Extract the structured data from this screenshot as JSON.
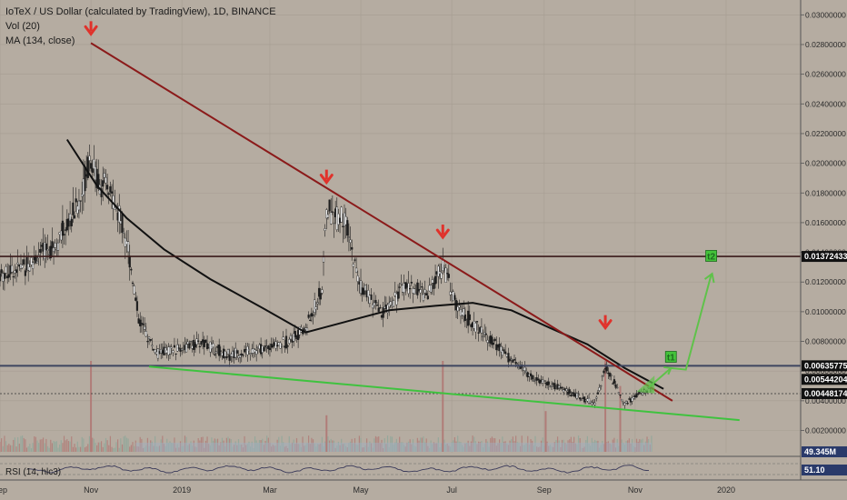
{
  "header": {
    "title": "IoTeX / US Dollar (calculated by TradingView), 1D, BINANCE",
    "vol_label": "Vol (20)",
    "ma_label": "MA (134, close)"
  },
  "rsi": {
    "label": "RSI (14, hlc3)",
    "value": "51.10"
  },
  "vol_value": "49.345M",
  "colors": {
    "background": "#b5aca1",
    "resistance_line": "#8b1a1a",
    "support_line": "#3fc23f",
    "ma_line": "#111111",
    "arrow": "#e0322b",
    "projection": "#5fc24a",
    "price_tag": "#111111",
    "target_bg": "#44c23a"
  },
  "chart_data": {
    "type": "candlestick",
    "y_axis_scale": "linear",
    "ylim": [
      0.0005,
      0.031
    ],
    "y_ticks": [
      0.002,
      0.004,
      0.006,
      0.008,
      0.01,
      0.012,
      0.014,
      0.016,
      0.018,
      0.02,
      0.022,
      0.024,
      0.026,
      0.028,
      0.03
    ],
    "y_tick_labels": [
      "0.00200000",
      "0.00400000",
      "0.00600000",
      "0.00800000",
      "0.01000000",
      "0.01200000",
      "0.01400000",
      "0.01600000",
      "0.01800000",
      "0.02000000",
      "0.02200000",
      "0.02400000",
      "0.02600000",
      "0.02800000",
      "0.03000000"
    ],
    "x_axis_labels": [
      {
        "label": "Sep",
        "date": "2018-09-01"
      },
      {
        "label": "Nov",
        "date": "2018-11-01"
      },
      {
        "label": "2019",
        "date": "2019-01-01"
      },
      {
        "label": "Mar",
        "date": "2019-03-01"
      },
      {
        "label": "May",
        "date": "2019-05-01"
      },
      {
        "label": "Jul",
        "date": "2019-07-01"
      },
      {
        "label": "Sep",
        "date": "2019-09-01"
      },
      {
        "label": "Nov",
        "date": "2019-11-01"
      },
      {
        "label": "2020",
        "date": "2020-01-01"
      }
    ],
    "x_range": [
      "2018-09-01",
      "2020-02-20"
    ],
    "price_path": [
      [
        "2018-09-01",
        0.0125
      ],
      [
        "2018-09-20",
        0.0132
      ],
      [
        "2018-10-10",
        0.0148
      ],
      [
        "2018-10-25",
        0.0175
      ],
      [
        "2018-10-31",
        0.0205
      ],
      [
        "2018-11-05",
        0.019
      ],
      [
        "2018-11-15",
        0.0178
      ],
      [
        "2018-11-25",
        0.015
      ],
      [
        "2018-12-03",
        0.0095
      ],
      [
        "2018-12-15",
        0.0072
      ],
      [
        "2018-12-30",
        0.0075
      ],
      [
        "2019-01-15",
        0.0079
      ],
      [
        "2019-02-01",
        0.0071
      ],
      [
        "2019-02-20",
        0.0074
      ],
      [
        "2019-03-10",
        0.0079
      ],
      [
        "2019-03-25",
        0.0088
      ],
      [
        "2019-04-05",
        0.0115
      ],
      [
        "2019-04-08",
        0.0168
      ],
      [
        "2019-04-20",
        0.0162
      ],
      [
        "2019-04-30",
        0.0118
      ],
      [
        "2019-05-15",
        0.0098
      ],
      [
        "2019-05-31",
        0.0118
      ],
      [
        "2019-06-15",
        0.0112
      ],
      [
        "2019-06-25",
        0.0132
      ],
      [
        "2019-07-05",
        0.0102
      ],
      [
        "2019-07-20",
        0.0088
      ],
      [
        "2019-08-05",
        0.0072
      ],
      [
        "2019-08-25",
        0.0055
      ],
      [
        "2019-09-15",
        0.0047
      ],
      [
        "2019-09-28",
        0.0041
      ],
      [
        "2019-10-05",
        0.0038
      ],
      [
        "2019-10-12",
        0.0062
      ],
      [
        "2019-10-18",
        0.0052
      ],
      [
        "2019-10-25",
        0.0038
      ],
      [
        "2019-11-05",
        0.0045
      ],
      [
        "2019-11-12",
        0.0048
      ]
    ],
    "ma_path": [
      [
        "2018-10-16",
        0.0216
      ],
      [
        "2018-11-05",
        0.0185
      ],
      [
        "2018-11-25",
        0.0163
      ],
      [
        "2018-12-20",
        0.0142
      ],
      [
        "2019-01-20",
        0.0122
      ],
      [
        "2019-02-25",
        0.0102
      ],
      [
        "2019-03-25",
        0.0086
      ],
      [
        "2019-04-20",
        0.0093
      ],
      [
        "2019-05-20",
        0.0101
      ],
      [
        "2019-06-20",
        0.0104
      ],
      [
        "2019-07-15",
        0.0106
      ],
      [
        "2019-08-10",
        0.0101
      ],
      [
        "2019-09-05",
        0.0089
      ],
      [
        "2019-09-30",
        0.0078
      ],
      [
        "2019-10-25",
        0.0062
      ],
      [
        "2019-11-20",
        0.0048
      ]
    ],
    "drawings": {
      "resistance_trendline": [
        [
          "2018-11-01",
          0.0281
        ],
        [
          "2019-11-26",
          0.004
        ]
      ],
      "support_trendline": [
        [
          "2018-12-10",
          0.0063
        ],
        [
          "2020-01-10",
          0.0027
        ]
      ],
      "horizontal_levels": [
        0.01372433,
        0.00635775
      ],
      "peak_arrows": [
        [
          "2018-11-01",
          0.0281
        ],
        [
          "2019-04-08",
          0.0181
        ],
        [
          "2019-06-25",
          0.0144
        ],
        [
          "2019-10-12",
          0.0083
        ]
      ],
      "projection_path": [
        [
          "2019-11-10",
          0.0049
        ],
        [
          "2019-11-25",
          0.0062
        ],
        [
          "2019-12-05",
          0.0061
        ],
        [
          "2019-12-22",
          0.0125
        ]
      ],
      "targets": [
        {
          "label": "t1",
          "date": "2019-11-25",
          "price": 0.0069
        },
        {
          "label": "t2",
          "date": "2019-12-22",
          "price": 0.0137
        }
      ]
    },
    "price_tags": [
      {
        "value": 0.01372433,
        "label": "0.01372433"
      },
      {
        "value": 0.00635775,
        "label": "0.00635775"
      },
      {
        "value": 0.00544204,
        "label": "0.00544204"
      },
      {
        "value": 0.00448174,
        "label": "0.00448174"
      }
    ],
    "volume_spikes": [
      [
        "2018-11-01",
        1.0
      ],
      [
        "2019-04-08",
        0.35
      ],
      [
        "2019-06-25",
        1.0
      ],
      [
        "2019-09-02",
        0.4
      ],
      [
        "2019-10-12",
        1.0
      ],
      [
        "2019-10-22",
        0.7
      ]
    ]
  }
}
